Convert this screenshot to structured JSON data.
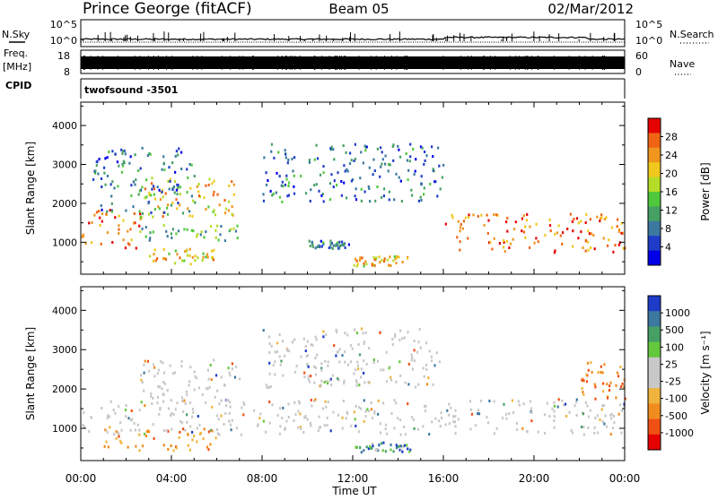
{
  "header": {
    "station": "Prince George (fitACF)",
    "beam": "Beam 05",
    "date": "02/Mar/2012"
  },
  "noise_panel": {
    "left_label": "N.Sky",
    "right_label": "N.Search",
    "left_ticks": [
      "10^5",
      "10^0"
    ],
    "right_ticks": [
      "10^5",
      "10^0"
    ]
  },
  "freq_panel": {
    "left_label_top": "Freq.",
    "left_label_units": "[MHz]",
    "right_label": "Nave",
    "left_ticks": [
      "18",
      "8"
    ],
    "right_ticks": [
      "60",
      "0"
    ]
  },
  "cpid": {
    "label": "CPID",
    "program": "twofsound -3501"
  },
  "x_axis": {
    "label": "Time UT",
    "ticks": [
      "00:00",
      "04:00",
      "08:00",
      "12:00",
      "16:00",
      "20:00",
      "00:00"
    ]
  },
  "colors": {
    "power": [
      "#0000e6",
      "#1e3cc8",
      "#3c78a0",
      "#46a064",
      "#50c83c",
      "#b4dc28",
      "#f0c81e",
      "#f0961e",
      "#f06414",
      "#e60000"
    ],
    "velocity_pos": [
      "#1e3cc8",
      "#3c78a0",
      "#46a064",
      "#64c83c"
    ],
    "velocity_ground": "#c8c8c8",
    "velocity_neg": [
      "#f0b43c",
      "#f08c1e",
      "#f05014",
      "#e60000"
    ]
  },
  "chart_data": [
    {
      "type": "heatmap",
      "name": "power-panel",
      "xlabel": "",
      "ylabel": "Slant Range [km]",
      "xlim": [
        0,
        24
      ],
      "ylim": [
        180,
        4600
      ],
      "y_ticks": [
        1000,
        2000,
        3000,
        4000
      ],
      "colorbar": {
        "label": "Power [dB]",
        "ticks": [
          "28",
          "24",
          "20",
          "16",
          "12",
          "8",
          "4"
        ],
        "range": [
          0,
          30
        ]
      },
      "features": [
        {
          "region": "main-echo-band",
          "time": [
            0.0,
            2.6
          ],
          "range": [
            800,
            1800
          ],
          "power_db": 24
        },
        {
          "region": "rising-arc",
          "time": [
            2.6,
            7.0
          ],
          "range": [
            1600,
            2700
          ],
          "power_db": 20
        },
        {
          "region": "mid-band",
          "time": [
            2.5,
            7.0
          ],
          "range": [
            1000,
            1400
          ],
          "power_db": 12
        },
        {
          "region": "lower-patch",
          "time": [
            3.0,
            6.0
          ],
          "range": [
            400,
            800
          ],
          "power_db": 20
        },
        {
          "region": "upper-scatter",
          "time": [
            0.5,
            5.0
          ],
          "range": [
            1700,
            3400
          ],
          "power_db": 8
        },
        {
          "region": "evening-arc",
          "time": [
            8.0,
            16.0
          ],
          "range": [
            2000,
            3500
          ],
          "power_db": 8
        },
        {
          "region": "midday-patch",
          "time": [
            10.0,
            11.8
          ],
          "range": [
            800,
            1000
          ],
          "power_db": 8
        },
        {
          "region": "low-range-echo",
          "time": [
            12.0,
            14.5
          ],
          "range": [
            350,
            600
          ],
          "power_db": 20
        },
        {
          "region": "late-band",
          "time": [
            16.0,
            24.0
          ],
          "range": [
            700,
            1700
          ],
          "power_db": 24
        }
      ]
    },
    {
      "type": "heatmap",
      "name": "velocity-panel",
      "xlabel": "Time UT",
      "ylabel": "Slant Range [km]",
      "xlim": [
        0,
        24
      ],
      "ylim": [
        180,
        4600
      ],
      "y_ticks": [
        1000,
        2000,
        3000,
        4000
      ],
      "colorbar": {
        "label": "Velocity [m s⁻¹]",
        "ticks": [
          "1000",
          "500",
          "100",
          "25",
          "-25",
          "-100",
          "-500",
          "-1000"
        ],
        "range": [
          -1200,
          1200
        ]
      },
      "features": [
        {
          "region": "ground-scatter-band",
          "time": [
            0.0,
            24.0
          ],
          "range": [
            800,
            1700
          ],
          "velocity": 0
        },
        {
          "region": "morning-negative-echo",
          "time": [
            1.0,
            6.0
          ],
          "range": [
            400,
            1000
          ],
          "velocity": -300
        },
        {
          "region": "ground-arc",
          "time": [
            2.6,
            7.0
          ],
          "range": [
            1600,
            2700
          ],
          "velocity": 0
        },
        {
          "region": "evening-ground-arc",
          "time": [
            8.0,
            16.0
          ],
          "range": [
            2000,
            3500
          ],
          "velocity": 0
        },
        {
          "region": "low-range-positive",
          "time": [
            12.0,
            14.5
          ],
          "range": [
            350,
            600
          ],
          "velocity": 150
        },
        {
          "region": "late-negative-scatter",
          "time": [
            22.0,
            24.0
          ],
          "range": [
            1700,
            2700
          ],
          "velocity": -300
        }
      ]
    }
  ]
}
